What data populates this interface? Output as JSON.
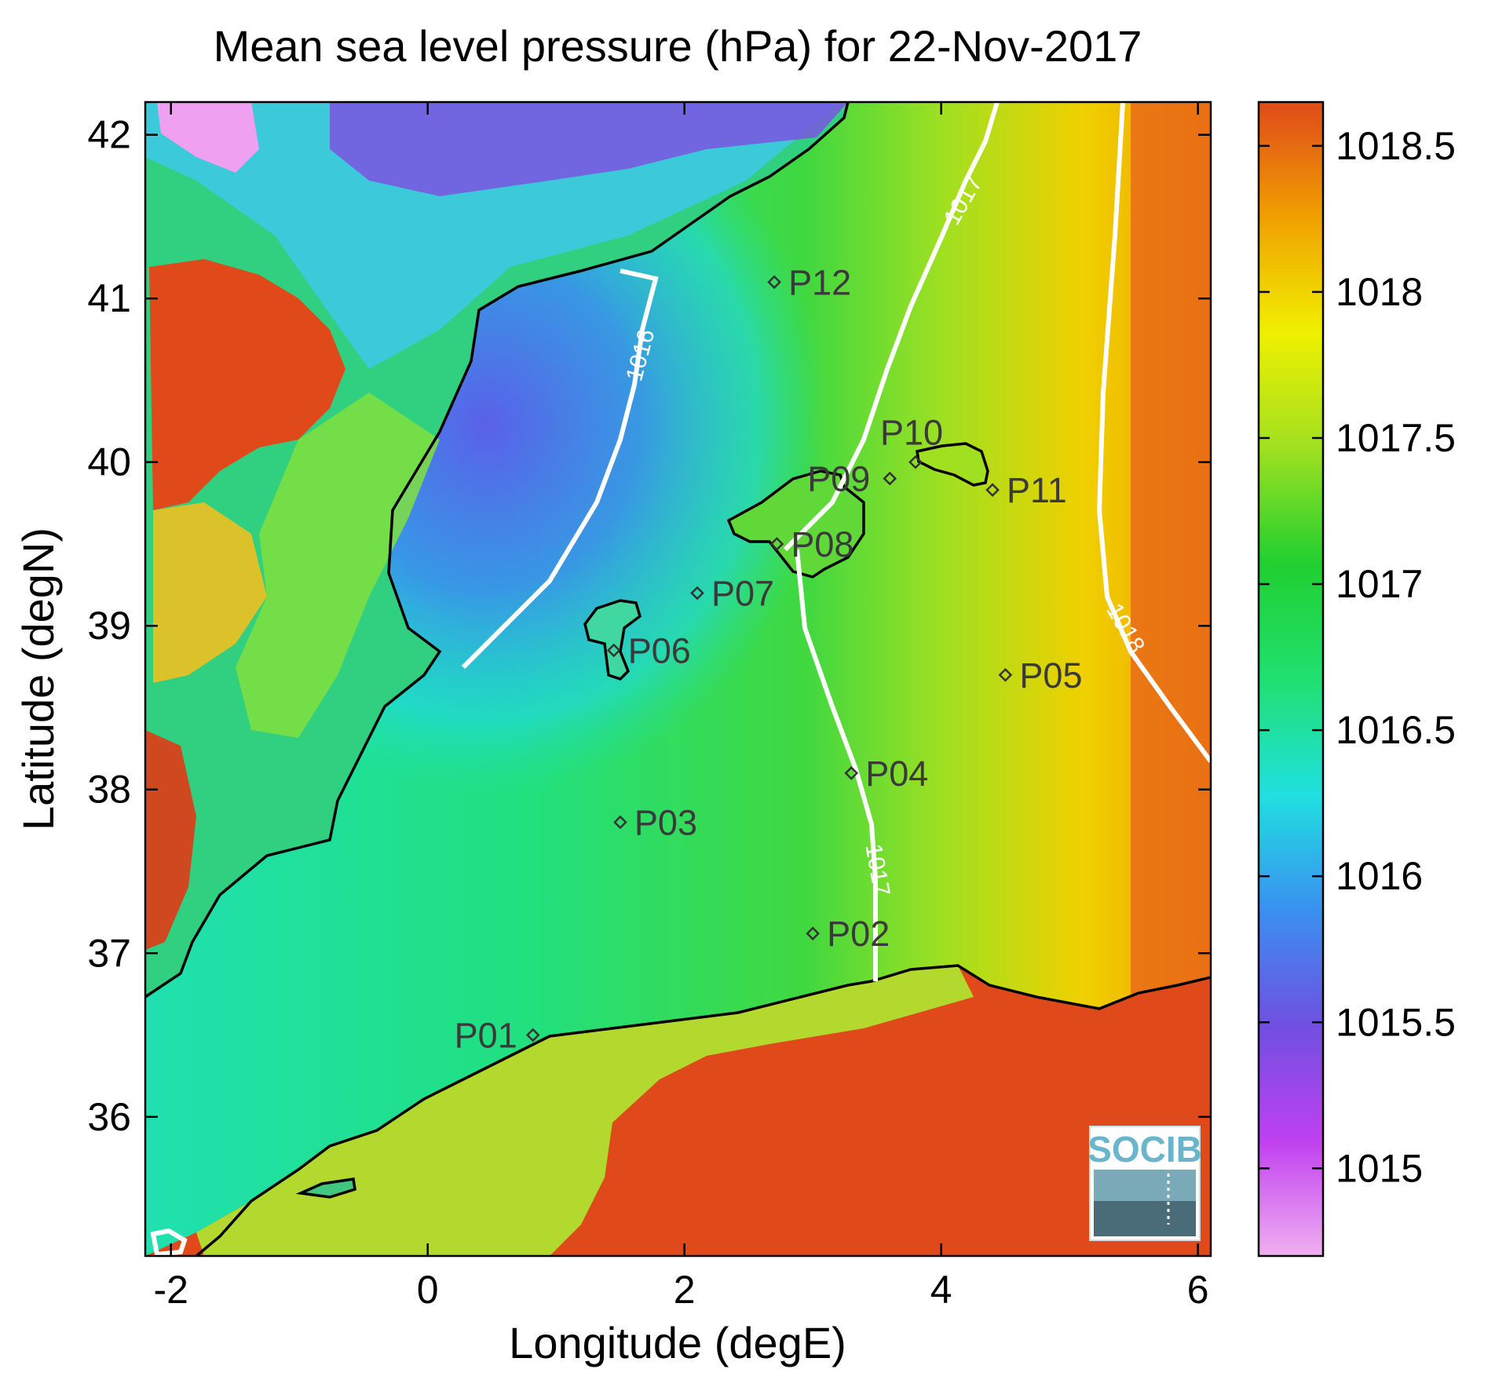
{
  "title": "Mean sea level pressure (hPa) for 22-Nov-2017",
  "xlabel": "Longitude (degE)",
  "ylabel": "Latitude (degN)",
  "xlim": [
    -2.2,
    6.1
  ],
  "ylim": [
    35.15,
    42.2
  ],
  "xticks": [
    -2,
    0,
    2,
    4,
    6
  ],
  "yticks": [
    36,
    37,
    38,
    39,
    40,
    41,
    42
  ],
  "colorbar": {
    "range": [
      1014.7,
      1018.65
    ],
    "ticks": [
      "1015",
      "1015.5",
      "1016",
      "1016.5",
      "1017",
      "1017.5",
      "1018",
      "1018.5"
    ],
    "colormap": [
      "#f0b0f0",
      "#c040f0",
      "#7050e0",
      "#3a90f0",
      "#20e0e0",
      "#20e070",
      "#20d030",
      "#a0e020",
      "#f0f000",
      "#f0a000",
      "#e04a1a"
    ]
  },
  "contour_labels": {
    "c1016": "1016",
    "c1017a": "1017",
    "c1017b": "1017",
    "c1018": "1018"
  },
  "stations": [
    {
      "id": "P01",
      "label": "P01",
      "lon": 0.82,
      "lat": 36.5
    },
    {
      "id": "P02",
      "label": "P02",
      "lon": 3.0,
      "lat": 37.12
    },
    {
      "id": "P03",
      "label": "P03",
      "lon": 1.5,
      "lat": 37.8
    },
    {
      "id": "P04",
      "label": "P04",
      "lon": 3.3,
      "lat": 38.1
    },
    {
      "id": "P05",
      "label": "P05",
      "lon": 4.5,
      "lat": 38.7
    },
    {
      "id": "P06",
      "label": "P06",
      "lon": 1.45,
      "lat": 38.85
    },
    {
      "id": "P07",
      "label": "P07",
      "lon": 2.1,
      "lat": 39.2
    },
    {
      "id": "P08",
      "label": "P08",
      "lon": 2.72,
      "lat": 39.5
    },
    {
      "id": "P09",
      "label": "P09",
      "lon": 3.6,
      "lat": 39.9
    },
    {
      "id": "P10",
      "label": "P10",
      "lon": 3.8,
      "lat": 40.0
    },
    {
      "id": "P11",
      "label": "P11",
      "lon": 4.4,
      "lat": 39.83
    },
    {
      "id": "P12",
      "label": "P12",
      "lon": 2.7,
      "lat": 41.1
    }
  ],
  "logo": {
    "text": "SOCIB"
  }
}
